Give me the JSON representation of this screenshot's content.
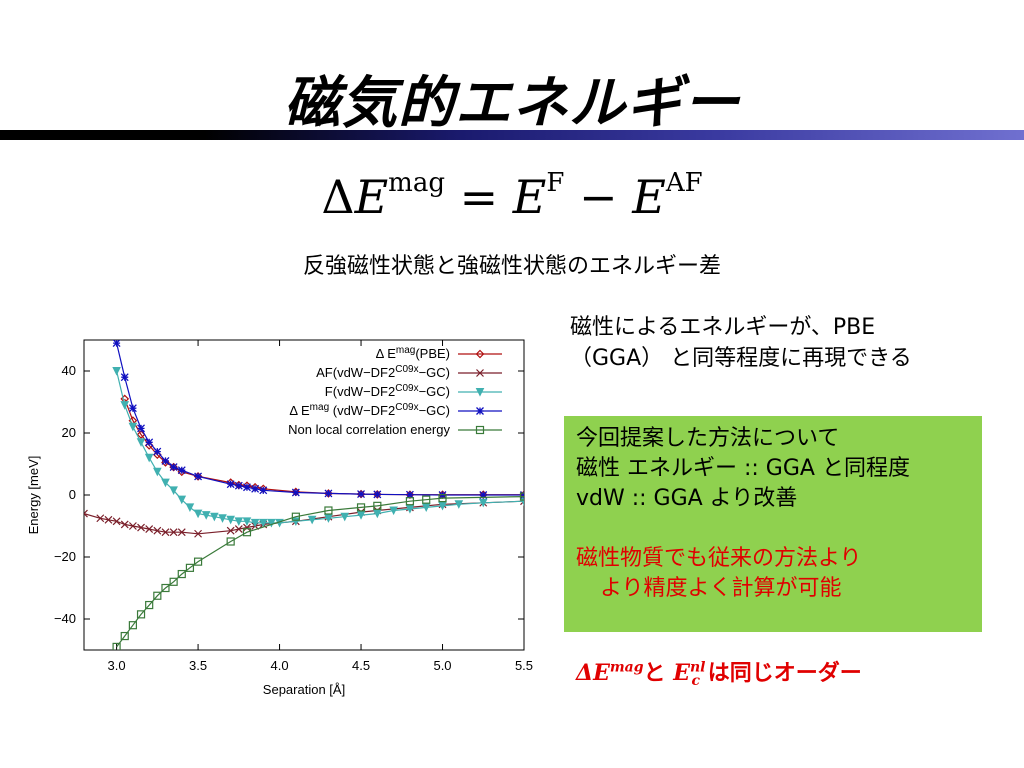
{
  "title": "磁気的エネルギー",
  "formula": {
    "lhs_delta": "Δ",
    "lhs_E": "E",
    "lhs_sup": "mag",
    "eq": "=",
    "rhs1_E": "E",
    "rhs1_sup": "F",
    "minus": "−",
    "rhs2_E": "E",
    "rhs2_sup": "AF"
  },
  "formula_caption": "反強磁性状態と強磁性状態のエネルギー差",
  "side_text": {
    "line1": "磁性によるエネルギーが、PBE",
    "line2": "（GGA） と同等程度に再現できる"
  },
  "greenbox": {
    "line1": "今回提案した方法について",
    "line2": "磁性 エネルギー :: GGA と同程度",
    "line3": "vdW :: GGA より改善",
    "line4": "磁性物質でも従来の方法より",
    "line5": "より精度よく計算が可能"
  },
  "bottom_note": {
    "delta_E": "ΔE",
    "mag": "mag",
    "to": "と",
    "E": "E",
    "nl": "nl",
    "c": "c",
    "suffix": " は同じオーダー"
  },
  "colors": {
    "accent_red": "#e00000",
    "box_green": "#8fd14f",
    "series_pbe": "#b01010",
    "series_af": "#7a1f2a",
    "series_f": "#40b0b0",
    "series_dmag": "#1010c0",
    "series_nonlocal": "#3a7a3a"
  },
  "chart_data": {
    "type": "line",
    "xlabel": "Separation [Å]",
    "ylabel": "Energy [meV]",
    "xlim": [
      2.8,
      5.5
    ],
    "ylim": [
      -50,
      50
    ],
    "xticks": [
      "3.0",
      "3.5",
      "4.0",
      "4.5",
      "5.0",
      "5.5"
    ],
    "yticks": [
      "40",
      "20",
      "0",
      "−20",
      "−40"
    ],
    "xtick_values": [
      3.0,
      3.5,
      4.0,
      4.5,
      5.0,
      5.5
    ],
    "ytick_values": [
      40,
      20,
      0,
      -20,
      -40
    ],
    "grid": false,
    "legend_position": "top-right",
    "series": [
      {
        "key": "pbe",
        "name": "Δ E mag(PBE)",
        "legend_main": "Δ E",
        "legend_sup": "mag",
        "legend_tail": "(PBE)",
        "marker": "diamond",
        "color": "#b01010",
        "x": [
          3.05,
          3.1,
          3.15,
          3.2,
          3.25,
          3.3,
          3.35,
          3.4,
          3.5,
          3.7,
          3.75,
          3.8,
          3.85,
          3.9,
          4.1,
          4.3,
          4.5,
          4.6,
          4.8,
          5.0,
          5.25,
          5.5
        ],
        "y": [
          31,
          24,
          19.5,
          16,
          13,
          10.5,
          9,
          7.5,
          6,
          4,
          3.2,
          3,
          2.5,
          2,
          1,
          0.5,
          0.3,
          0.2,
          0.1,
          0.1,
          0.1,
          0.1
        ]
      },
      {
        "key": "af",
        "name": "AF(vdW−DF2C09x−GC)",
        "legend_main": "AF(vdW−DF2",
        "legend_sup": "C09x",
        "legend_tail": "−GC)",
        "marker": "x",
        "color": "#7a1f2a",
        "x": [
          2.8,
          2.9,
          2.95,
          3.0,
          3.05,
          3.1,
          3.15,
          3.2,
          3.25,
          3.3,
          3.35,
          3.4,
          3.5,
          3.7,
          3.75,
          3.8,
          3.85,
          3.9,
          4.1,
          4.3,
          4.5,
          4.6,
          4.8,
          5.0,
          5.25,
          5.5
        ],
        "y": [
          -6,
          -7.5,
          -8,
          -8.5,
          -9.5,
          -10,
          -10.5,
          -11,
          -11.5,
          -12,
          -12,
          -12,
          -12.5,
          -11.5,
          -11,
          -10.5,
          -10,
          -9.5,
          -8.5,
          -7,
          -5.5,
          -5,
          -4,
          -3,
          -2.5,
          -2
        ]
      },
      {
        "key": "f",
        "name": "F(vdW−DF2C09x−GC)",
        "legend_main": "F(vdW−DF2",
        "legend_sup": "C09x",
        "legend_tail": "−GC)",
        "marker": "triangle-down",
        "color": "#40b0b0",
        "x": [
          3.0,
          3.05,
          3.1,
          3.15,
          3.2,
          3.25,
          3.3,
          3.35,
          3.4,
          3.45,
          3.5,
          3.55,
          3.6,
          3.65,
          3.7,
          3.75,
          3.8,
          3.85,
          3.9,
          3.95,
          4.0,
          4.1,
          4.2,
          4.3,
          4.4,
          4.5,
          4.6,
          4.7,
          4.8,
          4.9,
          5.0,
          5.1,
          5.25,
          5.5
        ],
        "y": [
          40,
          29,
          22,
          17,
          12,
          7.5,
          4,
          1.5,
          -1.5,
          -4,
          -6,
          -6.5,
          -7,
          -7.5,
          -8,
          -8.5,
          -8.5,
          -9,
          -9,
          -9,
          -9,
          -8.5,
          -8,
          -7.5,
          -7,
          -6.5,
          -6,
          -5,
          -4.5,
          -4,
          -3.5,
          -3,
          -2.5,
          -2
        ]
      },
      {
        "key": "dmag",
        "name": "Δ E mag (vdW−DF2C09x−GC)",
        "legend_main": "Δ E",
        "legend_sup": "mag",
        "legend_tail": " (vdW−DF2",
        "legend_sup2": "C09x",
        "legend_tail2": "−GC)",
        "marker": "star",
        "color": "#1010c0",
        "x": [
          3.0,
          3.05,
          3.1,
          3.15,
          3.2,
          3.25,
          3.3,
          3.35,
          3.4,
          3.5,
          3.7,
          3.75,
          3.8,
          3.85,
          3.9,
          4.1,
          4.3,
          4.5,
          4.6,
          4.8,
          5.0,
          5.25,
          5.5
        ],
        "y": [
          49,
          38,
          28,
          21.5,
          17,
          14,
          11,
          9,
          8,
          6,
          3.5,
          3,
          2.5,
          2,
          1.5,
          0.8,
          0.5,
          0.3,
          0.2,
          0.1,
          0,
          0,
          0
        ]
      },
      {
        "key": "nonlocal",
        "name": "Non local correlation energy",
        "legend_main": "Non local correlation energy",
        "marker": "square",
        "color": "#3a7a3a",
        "x": [
          3.0,
          3.05,
          3.1,
          3.15,
          3.2,
          3.25,
          3.3,
          3.35,
          3.4,
          3.45,
          3.5,
          3.7,
          3.8,
          4.1,
          4.3,
          4.5,
          4.6,
          4.8,
          4.9,
          5.0,
          5.5
        ],
        "y": [
          -49,
          -45.5,
          -42,
          -38.5,
          -35.5,
          -32.5,
          -30,
          -28,
          -25.5,
          -23.5,
          -21.5,
          -15,
          -12,
          -7,
          -5,
          -4,
          -3.5,
          -2,
          -1.5,
          -1,
          -0.5
        ]
      }
    ]
  }
}
